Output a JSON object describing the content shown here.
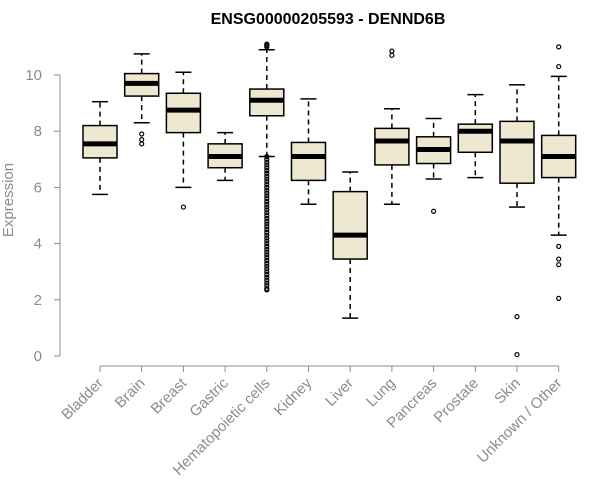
{
  "chart_data": {
    "type": "box",
    "title": "ENSG00000205593 - DENND6B",
    "ylabel": "Expression",
    "xlabel": "",
    "ylim": [
      0,
      11
    ],
    "yticks": [
      0,
      2,
      4,
      6,
      8,
      10
    ],
    "categories": [
      "Bladder",
      "Brain",
      "Breast",
      "Gastric",
      "Hematopoietic cells",
      "Kidney",
      "Liver",
      "Lung",
      "Pancreas",
      "Prostate",
      "Skin",
      "Unknown / Other"
    ],
    "boxes": [
      {
        "whisker_low": 5.75,
        "q1": 7.05,
        "median": 7.55,
        "q3": 8.2,
        "whisker_high": 9.05,
        "outliers": []
      },
      {
        "whisker_low": 8.3,
        "q1": 9.25,
        "median": 9.7,
        "q3": 10.05,
        "whisker_high": 10.75,
        "outliers": [
          7.55,
          7.7,
          7.9
        ]
      },
      {
        "whisker_low": 6.0,
        "q1": 7.95,
        "median": 8.75,
        "q3": 9.35,
        "whisker_high": 10.1,
        "outliers": [
          5.3
        ]
      },
      {
        "whisker_low": 6.25,
        "q1": 6.7,
        "median": 7.1,
        "q3": 7.55,
        "whisker_high": 7.95,
        "outliers": []
      },
      {
        "whisker_low": 7.1,
        "q1": 8.55,
        "median": 9.1,
        "q3": 9.5,
        "whisker_high": 10.9,
        "outliers": [
          11.0,
          11.1,
          11.05,
          7.1,
          7.0,
          6.9,
          6.8,
          6.7,
          6.6,
          6.5,
          6.4,
          6.3,
          6.2,
          6.1,
          6.0,
          5.9,
          5.8,
          5.7,
          5.6,
          5.5,
          5.4,
          5.3,
          5.2,
          5.1,
          5.0,
          4.9,
          4.8,
          4.7,
          4.6,
          4.5,
          4.4,
          4.3,
          4.2,
          4.1,
          4.0,
          3.9,
          3.8,
          3.7,
          3.6,
          3.5,
          3.4,
          3.3,
          3.2,
          3.1,
          3.0,
          2.9,
          2.8,
          2.7,
          2.6,
          2.5,
          2.4,
          2.35
        ]
      },
      {
        "whisker_low": 5.4,
        "q1": 6.25,
        "median": 7.1,
        "q3": 7.6,
        "whisker_high": 9.15,
        "outliers": []
      },
      {
        "whisker_low": 1.35,
        "q1": 3.45,
        "median": 4.3,
        "q3": 5.85,
        "whisker_high": 6.55,
        "outliers": []
      },
      {
        "whisker_low": 5.4,
        "q1": 6.8,
        "median": 7.65,
        "q3": 8.1,
        "whisker_high": 8.8,
        "outliers": [
          10.7,
          10.85
        ]
      },
      {
        "whisker_low": 6.3,
        "q1": 6.85,
        "median": 7.35,
        "q3": 7.8,
        "whisker_high": 8.45,
        "outliers": [
          5.15
        ]
      },
      {
        "whisker_low": 6.35,
        "q1": 7.25,
        "median": 8.0,
        "q3": 8.25,
        "whisker_high": 9.3,
        "outliers": []
      },
      {
        "whisker_low": 5.3,
        "q1": 6.15,
        "median": 7.65,
        "q3": 8.35,
        "whisker_high": 9.65,
        "outliers": [
          1.4,
          0.05
        ]
      },
      {
        "whisker_low": 4.3,
        "q1": 6.35,
        "median": 7.1,
        "q3": 7.85,
        "whisker_high": 9.95,
        "outliers": [
          11.0,
          10.3,
          3.9,
          3.45,
          3.25,
          2.05
        ]
      }
    ],
    "colors": {
      "box_fill": "#efe8d0",
      "box_stroke": "#000000",
      "median": "#000000",
      "axis": "#8c8c8c"
    },
    "grid": false,
    "legend": "none"
  }
}
